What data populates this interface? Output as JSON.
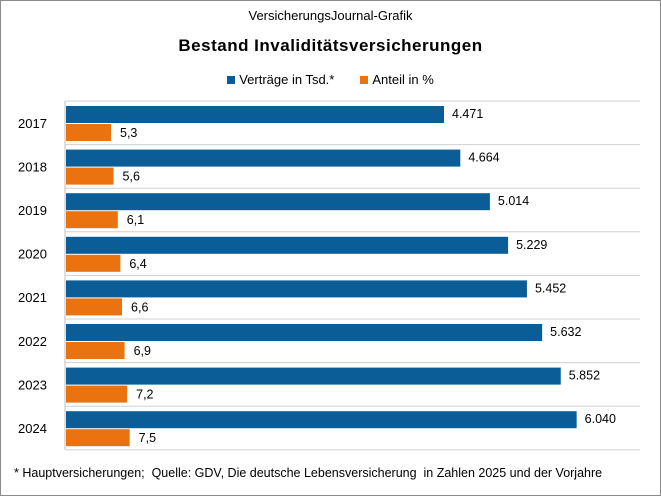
{
  "header": {
    "source": "VersicherungsJournal-Grafik"
  },
  "chart_data": {
    "type": "bar",
    "orientation": "horizontal",
    "title": "Bestand Invaliditätsversicherungen",
    "categories": [
      "2017",
      "2018",
      "2019",
      "2020",
      "2021",
      "2022",
      "2023",
      "2024"
    ],
    "series": [
      {
        "name": "Verträge in Tsd.*",
        "color": "#0b5d97",
        "values": [
          4471,
          4664,
          5014,
          5229,
          5452,
          5632,
          5852,
          6040
        ],
        "labels": [
          "4.471",
          "4.664",
          "5.014",
          "5.229",
          "5.452",
          "5.632",
          "5.852",
          "6.040"
        ]
      },
      {
        "name": "Anteil in %",
        "color": "#ea720f",
        "values": [
          5.3,
          5.6,
          6.1,
          6.4,
          6.6,
          6.9,
          7.2,
          7.5
        ],
        "labels": [
          "5,3",
          "5,6",
          "6,1",
          "6,4",
          "6,6",
          "6,9",
          "7,2",
          "7,5"
        ]
      }
    ],
    "legend_position": "top-center",
    "grid": true
  },
  "footnote": "* Hauptversicherungen;  Quelle: GDV, Die deutsche Lebensversicherung  in Zahlen 2025 und der Vorjahre"
}
